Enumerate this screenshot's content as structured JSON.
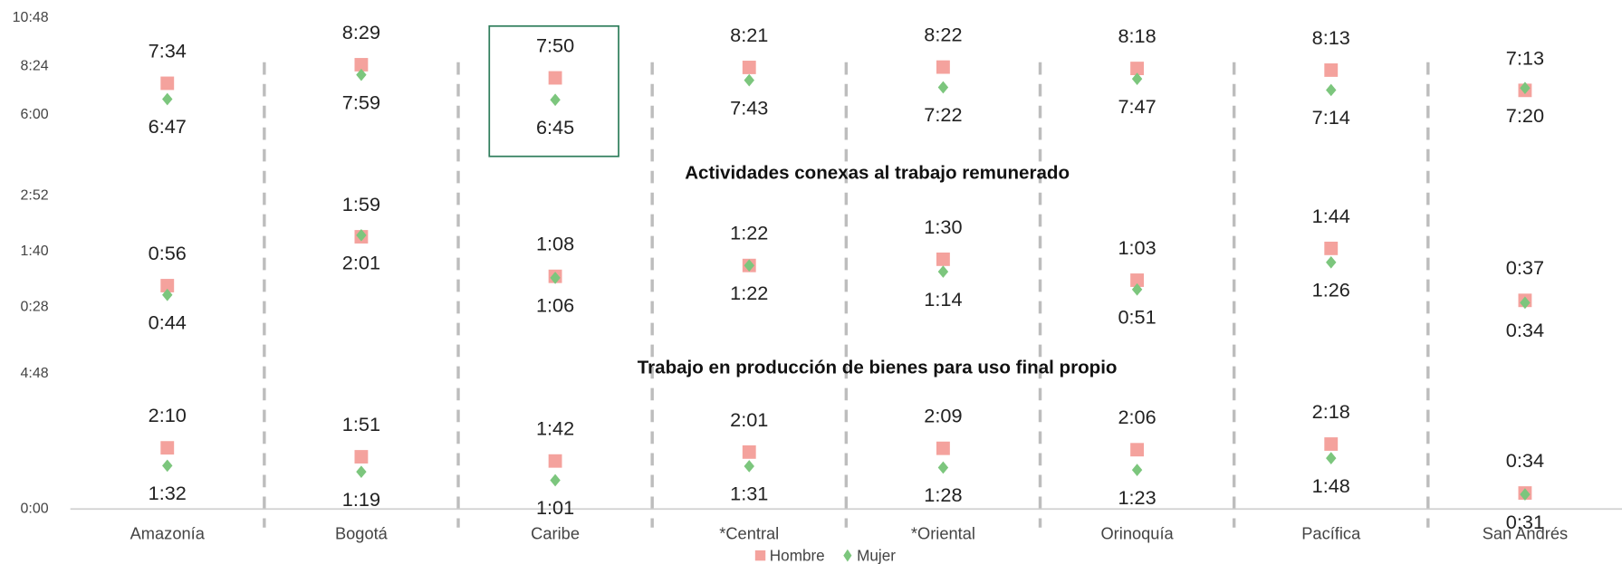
{
  "chart_data": [
    {
      "type": "scatter",
      "ylim": [
        216,
        648
      ],
      "yticks": [
        {
          "value": 360,
          "label": "6:00"
        },
        {
          "value": 504,
          "label": "8:24"
        },
        {
          "value": 648,
          "label": "10:48"
        }
      ],
      "series": [
        {
          "color": "#f4a29d",
          "values": [
            454,
            509,
            470,
            501,
            502,
            498,
            493,
            433
          ],
          "value_labels": [
            "7:34",
            "8:29",
            "7:50",
            "8:21",
            "8:22",
            "8:18",
            "8:13",
            "7:13"
          ]
        },
        {
          "color": "#7cc67d",
          "values": [
            407,
            479,
            405,
            463,
            442,
            467,
            434,
            440
          ],
          "value_labels": [
            "6:47",
            "7:59",
            "6:45",
            "7:43",
            "7:22",
            "7:47",
            "7:14",
            "7:20"
          ]
        }
      ]
    },
    {
      "type": "scatter",
      "title": "Actividades conexas al trabajo remunerado",
      "ylim": [
        -8,
        172
      ],
      "yticks": [
        {
          "value": 28,
          "label": "0:28"
        },
        {
          "value": 100,
          "label": "1:40"
        },
        {
          "value": 172,
          "label": "2:52"
        }
      ],
      "series": [
        {
          "color": "#f4a29d",
          "values": [
            56,
            119,
            68,
            82,
            90,
            63,
            104,
            37
          ],
          "value_labels": [
            "0:56",
            "1:59",
            "1:08",
            "1:22",
            "1:30",
            "1:03",
            "1:44",
            "0:37"
          ]
        },
        {
          "color": "#7cc67d",
          "values": [
            44,
            121,
            66,
            82,
            74,
            51,
            86,
            34
          ],
          "value_labels": [
            "0:44",
            "2:01",
            "1:06",
            "1:22",
            "1:14",
            "0:51",
            "1:26",
            "0:34"
          ]
        }
      ]
    },
    {
      "type": "scatter",
      "title": "Trabajo en producción de bienes para uso final propio",
      "categories": [
        "Amazonía",
        "Bogotá",
        "Caribe",
        "*Central",
        "*Oriental",
        "Orinoquía",
        "Pacífica",
        "San Andrés"
      ],
      "ylim": [
        0,
        288
      ],
      "yticks": [
        {
          "value": 0,
          "label": "0:00"
        },
        {
          "value": 288,
          "label": "4:48"
        }
      ],
      "series": [
        {
          "name": "Hombre",
          "color": "#f4a29d",
          "values": [
            130,
            111,
            102,
            121,
            129,
            126,
            138,
            34
          ],
          "value_labels": [
            "2:10",
            "1:51",
            "1:42",
            "2:01",
            "2:09",
            "2:06",
            "2:18",
            "0:34"
          ]
        },
        {
          "name": "Mujer",
          "color": "#7cc67d",
          "values": [
            92,
            79,
            61,
            91,
            88,
            83,
            108,
            31
          ],
          "value_labels": [
            "1:32",
            "1:19",
            "1:01",
            "1:31",
            "1:28",
            "1:23",
            "1:48",
            "0:31"
          ]
        }
      ]
    }
  ]
}
